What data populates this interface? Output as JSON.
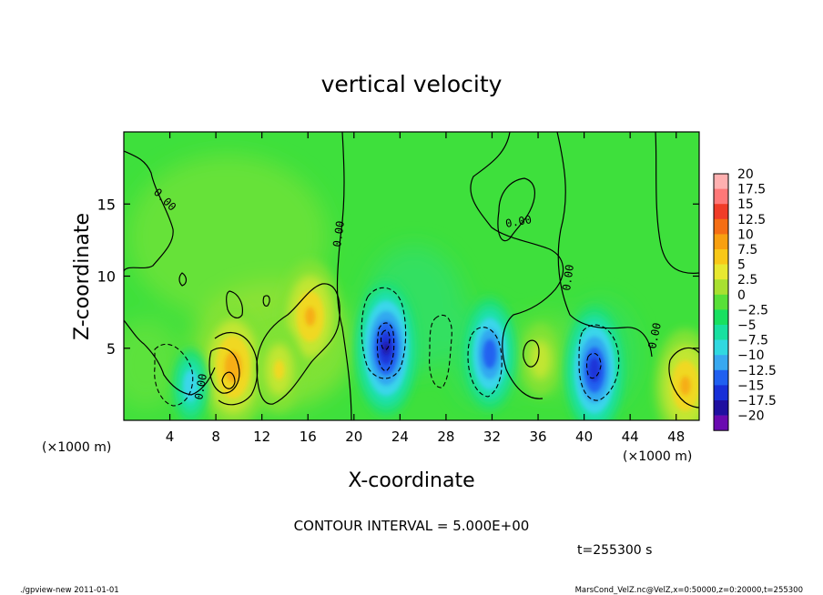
{
  "chart_data": {
    "type": "heatmap",
    "title": "vertical velocity",
    "xlabel": "X-coordinate",
    "ylabel": "Z-coordinate",
    "x_unit_left": "(×1000 m)",
    "x_unit_right": "(×1000 m)",
    "xlim": [
      0,
      50
    ],
    "ylim": [
      0,
      20
    ],
    "x_ticks": [
      4,
      8,
      12,
      16,
      20,
      24,
      28,
      32,
      36,
      40,
      44,
      48
    ],
    "x_tick_labels": [
      "4",
      "8",
      "12",
      "16",
      "20",
      "24",
      "28",
      "32",
      "36",
      "40",
      "44",
      "48"
    ],
    "y_ticks": [
      5,
      10,
      15
    ],
    "y_tick_labels": [
      "5",
      "10",
      "15"
    ],
    "contour_interval_text": "CONTOUR INTERVAL = 5.000E+00",
    "time_text": "t=255300 s",
    "contour_labels": [
      "0.00",
      "0.00",
      "0.00",
      "0.00",
      "0.00",
      "0.00"
    ],
    "colorbar": {
      "labels": [
        "20",
        "17.5",
        "15",
        "12.5",
        "10",
        "7.5",
        "5",
        "2.5",
        "0",
        "−2.5",
        "−5",
        "−7.5",
        "−10",
        "−12.5",
        "−15",
        "−17.5",
        "−20"
      ],
      "colors": [
        "#ffb0b0",
        "#ff7878",
        "#f03c28",
        "#f56e14",
        "#f8a010",
        "#f8c818",
        "#e8e830",
        "#a8e030",
        "#58e038",
        "#18e060",
        "#18e0a0",
        "#30d8e0",
        "#38a8f0",
        "#2060f0",
        "#1830d8",
        "#2010a0",
        "#6a0ab0"
      ]
    },
    "features": [
      {
        "x": 9.5,
        "z": 3.7,
        "w": 8.5,
        "kind": "updraft"
      },
      {
        "x": 16.2,
        "z": 7.2,
        "w": 7.5,
        "kind": "updraft"
      },
      {
        "x": 13.5,
        "z": 3.5,
        "w": 5,
        "kind": "updraft"
      },
      {
        "x": 48.8,
        "z": 2.4,
        "w": 7.5,
        "kind": "updraft"
      },
      {
        "x": 36.2,
        "z": 4.2,
        "w": 4,
        "kind": "updraft"
      },
      {
        "x": 5.8,
        "z": 2.4,
        "w": -7,
        "kind": "downdraft"
      },
      {
        "x": 22.8,
        "z": 5.0,
        "w": -15,
        "kind": "downdraft"
      },
      {
        "x": 31.8,
        "z": 4.6,
        "w": -12,
        "kind": "downdraft"
      },
      {
        "x": 40.9,
        "z": 3.5,
        "w": -14,
        "kind": "downdraft"
      }
    ]
  },
  "footer": {
    "left": "./gpview-new   2011-01-01",
    "right": "MarsCond_VelZ.nc@VelZ,x=0:50000,z=0:20000,t=255300"
  }
}
